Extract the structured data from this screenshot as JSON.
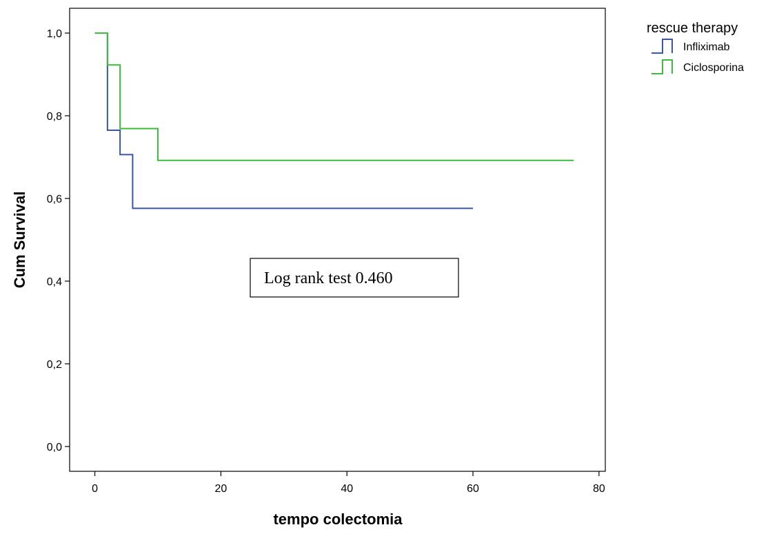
{
  "chart_data": {
    "type": "line",
    "step": true,
    "title": "",
    "xlabel": "tempo colectomia",
    "ylabel": "Cum Survival",
    "xlim": [
      -4,
      81
    ],
    "ylim": [
      -0.06,
      1.06
    ],
    "xticks": [
      0,
      20,
      40,
      60,
      80
    ],
    "xtick_labels": [
      "0",
      "20",
      "40",
      "60",
      "80"
    ],
    "yticks": [
      0.0,
      0.2,
      0.4,
      0.6,
      0.8,
      1.0
    ],
    "ytick_labels": [
      "0,0",
      "0,2",
      "0,4",
      "0,6",
      "0,8",
      "1,0"
    ],
    "legend": {
      "title": "rescue therapy",
      "placement": "right-outside-top"
    },
    "series": [
      {
        "name": "Infliximab",
        "color": "#3a55a4",
        "x": [
          0,
          2,
          4,
          6,
          60
        ],
        "y": [
          1.0,
          0.765,
          0.706,
          0.576,
          0.576
        ]
      },
      {
        "name": "Ciclosporina",
        "color": "#3dbb3d",
        "x": [
          0,
          2,
          4,
          10,
          76
        ],
        "y": [
          1.0,
          0.923,
          0.769,
          0.692,
          0.692
        ]
      }
    ],
    "annotations": [
      {
        "text": "Log rank test 0.460",
        "boxed": true
      }
    ]
  }
}
